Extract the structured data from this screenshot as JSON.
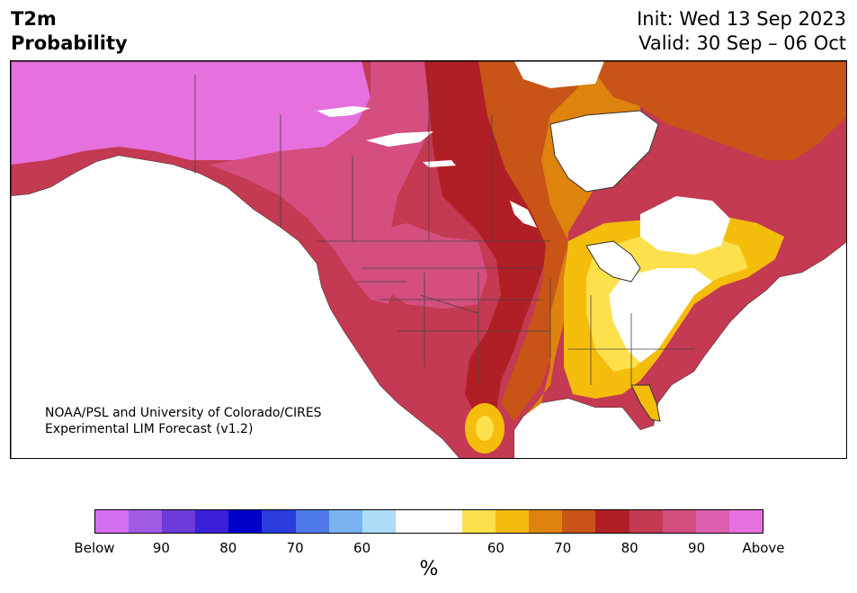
{
  "header": {
    "title_line1": "T2m",
    "title_line2": "Probability",
    "init_text": "Init: Wed 13 Sep 2023",
    "valid_text": "Valid: 30 Sep – 06 Oct"
  },
  "credit": {
    "line1": "NOAA/PSL and University of Colorado/CIRES",
    "line2": "Experimental LIM Forecast (v1.2)"
  },
  "colorbar": {
    "colors": [
      "#d56ff0",
      "#a05ae5",
      "#6c3bd8",
      "#3a1fd8",
      "#0000cc",
      "#2a3cdc",
      "#4f79e8",
      "#79b2f0",
      "#acdcf8",
      "#ffffff",
      "#ffffff",
      "#fde04c",
      "#f5bd0b",
      "#de830e",
      "#c85418",
      "#b11f26",
      "#c33a52",
      "#d44e80",
      "#dd60b0",
      "#e670dd"
    ],
    "tick_labels": [
      "Below",
      "90",
      "80",
      "70",
      "60",
      "60",
      "70",
      "80",
      "90",
      "Above"
    ],
    "unit": "%"
  },
  "map": {
    "palette": {
      "ocean": "#ffffff",
      "cat_above_far": "#e670dd",
      "cat_90": "#d44e80",
      "cat_85": "#c33a52",
      "cat_80": "#b11f26",
      "cat_75": "#c85418",
      "cat_70": "#de830e",
      "cat_65": "#f5bd0b",
      "cat_60": "#fde04c",
      "neutral": "#ffffff",
      "border": "#333333"
    }
  }
}
